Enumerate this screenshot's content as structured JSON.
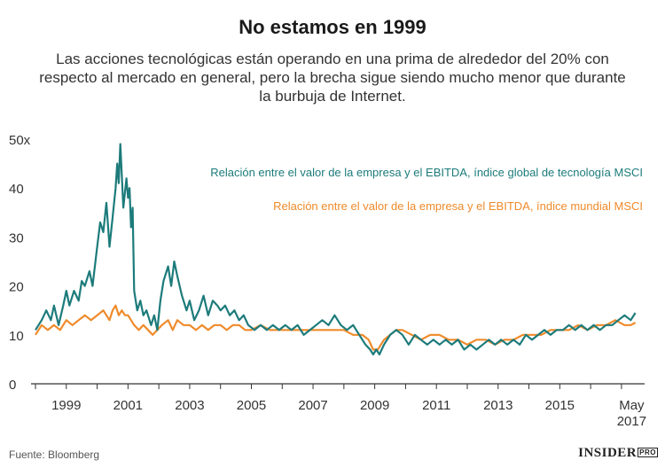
{
  "header": {
    "title": "No estamos en 1999",
    "subtitle": "Las acciones tecnológicas están operando en una prima de alrededor del 20% con respecto al mercado en general, pero la brecha sigue siendo mucho menor que durante la burbuja de Internet."
  },
  "footer": {
    "source": "Fuente: Bloomberg",
    "logo_text": "INSIDER",
    "logo_badge": "PRO"
  },
  "chart_data": {
    "type": "line",
    "title": "No estamos en 1999",
    "xlabel": "",
    "ylabel": "",
    "xlim": [
      1998.0,
      2017.75
    ],
    "ylim": [
      0,
      50
    ],
    "y_ticks": [
      0,
      10,
      20,
      30,
      40,
      50
    ],
    "y_tick_labels": [
      "0",
      "10",
      "20",
      "30",
      "40",
      "50x"
    ],
    "x_ticks": [
      1999,
      2001,
      2003,
      2005,
      2007,
      2009,
      2011,
      2013,
      2015,
      2017.33
    ],
    "x_tick_labels": [
      "1999",
      "2001",
      "2003",
      "2005",
      "2007",
      "2009",
      "2011",
      "2013",
      "2015",
      "May\n2017"
    ],
    "grid": false,
    "legend_position": "top-right",
    "series": [
      {
        "name": "Relación entre el valor de la empresa y el EBITDA, índice global de tecnología MSCI",
        "color": "#1d7b7b",
        "x": [
          1998.0,
          1998.2,
          1998.35,
          1998.5,
          1998.6,
          1998.75,
          1998.9,
          1999.0,
          1999.1,
          1999.25,
          1999.4,
          1999.5,
          1999.6,
          1999.75,
          1999.85,
          2000.0,
          2000.1,
          2000.2,
          2000.3,
          2000.4,
          2000.5,
          2000.6,
          2000.65,
          2000.7,
          2000.75,
          2000.85,
          2000.95,
          2001.0,
          2001.05,
          2001.1,
          2001.15,
          2001.2,
          2001.3,
          2001.4,
          2001.5,
          2001.6,
          2001.75,
          2001.85,
          2001.95,
          2002.05,
          2002.15,
          2002.3,
          2002.4,
          2002.5,
          2002.6,
          2002.75,
          2002.9,
          2003.0,
          2003.15,
          2003.3,
          2003.45,
          2003.6,
          2003.75,
          2003.9,
          2004.0,
          2004.15,
          2004.3,
          2004.45,
          2004.6,
          2004.75,
          2004.9,
          2005.1,
          2005.3,
          2005.5,
          2005.7,
          2005.9,
          2006.1,
          2006.3,
          2006.5,
          2006.7,
          2006.9,
          2007.1,
          2007.3,
          2007.5,
          2007.7,
          2007.9,
          2008.1,
          2008.3,
          2008.5,
          2008.7,
          2008.85,
          2008.95,
          2009.05,
          2009.15,
          2009.3,
          2009.5,
          2009.7,
          2009.9,
          2010.1,
          2010.3,
          2010.5,
          2010.7,
          2010.9,
          2011.1,
          2011.3,
          2011.5,
          2011.7,
          2011.9,
          2012.1,
          2012.3,
          2012.5,
          2012.7,
          2012.9,
          2013.1,
          2013.3,
          2013.5,
          2013.7,
          2013.9,
          2014.1,
          2014.3,
          2014.5,
          2014.7,
          2014.9,
          2015.1,
          2015.3,
          2015.5,
          2015.7,
          2015.9,
          2016.1,
          2016.3,
          2016.5,
          2016.7,
          2016.9,
          2017.1,
          2017.3,
          2017.45
        ],
        "values": [
          11,
          13,
          15,
          13,
          16,
          12,
          16,
          19,
          16,
          19,
          17,
          21,
          20,
          23,
          20,
          28,
          33,
          31,
          37,
          28,
          34,
          40,
          45,
          41,
          49,
          36,
          42,
          38,
          40,
          32,
          36,
          19,
          15,
          17,
          14,
          15,
          12,
          14,
          11,
          17,
          21,
          24,
          20,
          25,
          22,
          18,
          15,
          17,
          13,
          15,
          18,
          14,
          17,
          16,
          15,
          16,
          14,
          15,
          13,
          14,
          12,
          11,
          12,
          11,
          12,
          11,
          12,
          11,
          12,
          10,
          11,
          12,
          13,
          12,
          14,
          12,
          11,
          12,
          10,
          8,
          7,
          6,
          7,
          6,
          8,
          10,
          11,
          10,
          8,
          10,
          9,
          8,
          9,
          8,
          9,
          8,
          9,
          7,
          8,
          7,
          8,
          9,
          8,
          9,
          8,
          9,
          8,
          10,
          9,
          10,
          11,
          10,
          11,
          11,
          12,
          11,
          12,
          11,
          12,
          11,
          12,
          12,
          13,
          14,
          13,
          14.5
        ]
      },
      {
        "name": "Relación entre el valor de la empresa y el EBITDA, índice mundial MSCI",
        "color": "#ef8a2a",
        "x": [
          1998.0,
          1998.2,
          1998.4,
          1998.6,
          1998.8,
          1999.0,
          1999.2,
          1999.4,
          1999.6,
          1999.8,
          2000.0,
          2000.2,
          2000.4,
          2000.5,
          2000.6,
          2000.7,
          2000.8,
          2000.9,
          2001.0,
          2001.1,
          2001.2,
          2001.35,
          2001.5,
          2001.65,
          2001.8,
          2001.95,
          2002.1,
          2002.3,
          2002.45,
          2002.6,
          2002.8,
          2003.0,
          2003.2,
          2003.4,
          2003.6,
          2003.8,
          2004.0,
          2004.2,
          2004.4,
          2004.6,
          2004.8,
          2005.0,
          2005.3,
          2005.6,
          2005.9,
          2006.2,
          2006.5,
          2006.8,
          2007.1,
          2007.4,
          2007.7,
          2008.0,
          2008.3,
          2008.6,
          2008.8,
          2008.95,
          2009.1,
          2009.3,
          2009.5,
          2009.7,
          2009.9,
          2010.2,
          2010.5,
          2010.8,
          2011.1,
          2011.4,
          2011.7,
          2012.0,
          2012.3,
          2012.6,
          2012.9,
          2013.2,
          2013.5,
          2013.8,
          2014.1,
          2014.4,
          2014.7,
          2015.0,
          2015.3,
          2015.6,
          2015.9,
          2016.2,
          2016.5,
          2016.8,
          2017.1,
          2017.3,
          2017.45
        ],
        "values": [
          10,
          12,
          11,
          12,
          11,
          13,
          12,
          13,
          14,
          13,
          14,
          15,
          13,
          15,
          16,
          14,
          15,
          14,
          14,
          13,
          12,
          11,
          12,
          11,
          10,
          11,
          12,
          13,
          11,
          13,
          12,
          12,
          11,
          12,
          11,
          12,
          12,
          11,
          12,
          12,
          11,
          11,
          12,
          11,
          11,
          11,
          11,
          11,
          11,
          11,
          11,
          11,
          10,
          10,
          9,
          7,
          7,
          9,
          10,
          11,
          11,
          10,
          9,
          10,
          10,
          9,
          9,
          8,
          9,
          9,
          8,
          9,
          9,
          10,
          10,
          10,
          11,
          11,
          11,
          12,
          11,
          12,
          12,
          13,
          12,
          12,
          12.5
        ]
      }
    ]
  }
}
